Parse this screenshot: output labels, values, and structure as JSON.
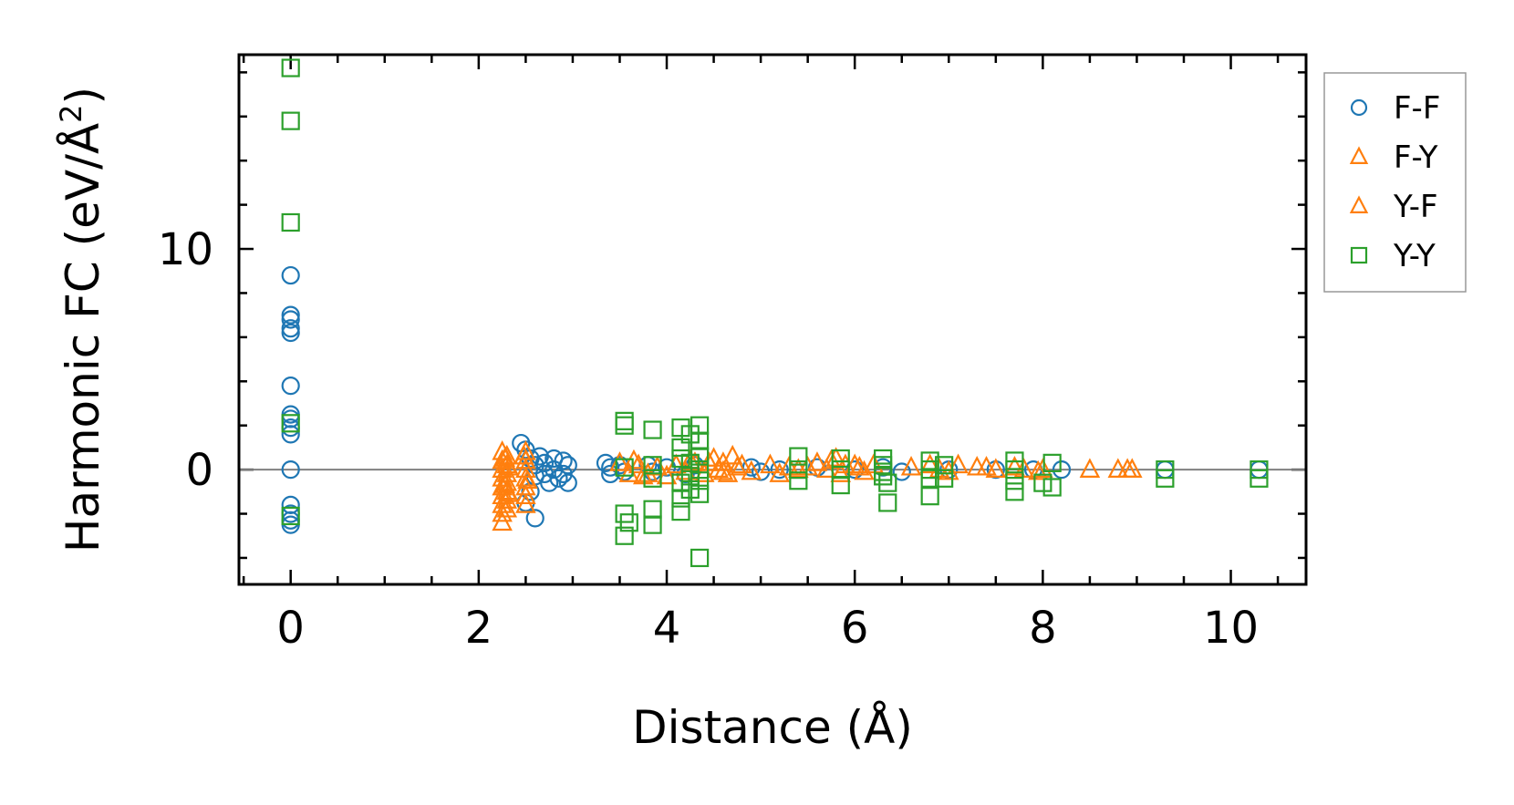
{
  "chart_data": {
    "type": "scatter",
    "xlabel": "Distance (Å)",
    "ylabel_main": "Harmonic FC (eV/Å",
    "ylabel_sup": "2",
    "ylabel_close": ")",
    "xlim": [
      -0.55,
      10.8
    ],
    "ylim": [
      -5.2,
      18.8
    ],
    "xticks": [
      0,
      2,
      4,
      6,
      8,
      10
    ],
    "xtick_labels": [
      "0",
      "2",
      "4",
      "6",
      "8",
      "10"
    ],
    "yticks": [
      0,
      10
    ],
    "ytick_labels": [
      "0",
      "10"
    ],
    "x_minor_step": 0.5,
    "y_minor_step": 2,
    "zero_line": true,
    "legend_position": "outside right, top",
    "series": [
      {
        "name": "F-F",
        "marker": "circle",
        "color": "#1f77b4",
        "points": [
          [
            0,
            8.8
          ],
          [
            0,
            7.0
          ],
          [
            0,
            6.8
          ],
          [
            0,
            6.4
          ],
          [
            0,
            6.2
          ],
          [
            0,
            3.8
          ],
          [
            0,
            2.5
          ],
          [
            0,
            2.3
          ],
          [
            0,
            1.9
          ],
          [
            0,
            1.6
          ],
          [
            0,
            0.0
          ],
          [
            0,
            -1.6
          ],
          [
            0,
            -2.0
          ],
          [
            0,
            -2.3
          ],
          [
            0,
            -2.5
          ],
          [
            2.45,
            1.2
          ],
          [
            2.5,
            0.9
          ],
          [
            2.55,
            0.5
          ],
          [
            2.55,
            -1.0
          ],
          [
            2.5,
            -1.5
          ],
          [
            2.6,
            -2.2
          ],
          [
            2.6,
            0.2
          ],
          [
            2.6,
            -0.3
          ],
          [
            2.65,
            0.6
          ],
          [
            2.7,
            0.3
          ],
          [
            2.7,
            -0.2
          ],
          [
            2.75,
            -0.6
          ],
          [
            2.8,
            0.5
          ],
          [
            2.8,
            0.0
          ],
          [
            2.85,
            -0.4
          ],
          [
            2.9,
            0.4
          ],
          [
            2.9,
            -0.2
          ],
          [
            2.95,
            0.2
          ],
          [
            2.95,
            -0.6
          ],
          [
            3.35,
            0.3
          ],
          [
            3.4,
            -0.2
          ],
          [
            3.4,
            0.1
          ],
          [
            3.5,
            0.2
          ],
          [
            3.55,
            -0.1
          ],
          [
            3.8,
            0.2
          ],
          [
            3.85,
            -0.1
          ],
          [
            4.0,
            0.1
          ],
          [
            4.2,
            -0.2
          ],
          [
            4.3,
            0.2
          ],
          [
            4.9,
            0.1
          ],
          [
            5.0,
            -0.1
          ],
          [
            5.2,
            0.0
          ],
          [
            5.6,
            0.1
          ],
          [
            6.0,
            0.0
          ],
          [
            6.3,
            0.1
          ],
          [
            6.5,
            -0.1
          ],
          [
            7.0,
            0.0
          ],
          [
            7.5,
            0.0
          ],
          [
            7.9,
            0.0
          ],
          [
            8.2,
            0.0
          ],
          [
            9.3,
            0.0
          ],
          [
            10.3,
            0.0
          ]
        ]
      },
      {
        "name": "F-Y",
        "marker": "triangle",
        "color": "#ff7f0e",
        "points": [
          [
            2.25,
            0.8
          ],
          [
            2.25,
            0.4
          ],
          [
            2.25,
            0.0
          ],
          [
            2.25,
            -0.4
          ],
          [
            2.25,
            -0.8
          ],
          [
            2.25,
            -1.2
          ],
          [
            2.25,
            -1.6
          ],
          [
            2.25,
            -2.0
          ],
          [
            2.25,
            -2.4
          ],
          [
            2.3,
            0.6
          ],
          [
            2.3,
            0.2
          ],
          [
            2.3,
            -0.2
          ],
          [
            2.3,
            -0.6
          ],
          [
            2.3,
            -1.0
          ],
          [
            2.3,
            -1.4
          ],
          [
            2.3,
            -1.8
          ],
          [
            2.5,
            0.8
          ],
          [
            2.5,
            0.4
          ],
          [
            2.5,
            0.0
          ],
          [
            2.5,
            -0.4
          ],
          [
            2.5,
            -0.8
          ],
          [
            2.5,
            -1.2
          ],
          [
            2.5,
            -1.6
          ],
          [
            3.5,
            0.3
          ],
          [
            3.6,
            -0.2
          ],
          [
            3.7,
            0.2
          ],
          [
            3.8,
            -0.2
          ],
          [
            3.9,
            0.1
          ],
          [
            4.0,
            -0.3
          ],
          [
            4.1,
            0.2
          ],
          [
            4.2,
            -0.1
          ],
          [
            4.3,
            0.3
          ],
          [
            4.4,
            -0.2
          ],
          [
            4.5,
            0.5
          ],
          [
            4.55,
            0.0
          ],
          [
            4.6,
            0.3
          ],
          [
            4.65,
            -0.2
          ],
          [
            4.7,
            0.6
          ],
          [
            4.75,
            0.1
          ],
          [
            4.8,
            0.2
          ],
          [
            4.9,
            -0.1
          ],
          [
            5.1,
            0.2
          ],
          [
            5.2,
            -0.2
          ],
          [
            5.3,
            0.1
          ],
          [
            5.5,
            0.1
          ],
          [
            5.6,
            0.3
          ],
          [
            5.7,
            0.0
          ],
          [
            5.8,
            0.5
          ],
          [
            5.85,
            -0.2
          ],
          [
            5.9,
            0.2
          ],
          [
            6.0,
            0.2
          ],
          [
            6.1,
            -0.1
          ],
          [
            6.2,
            0.2
          ],
          [
            6.6,
            0.1
          ],
          [
            6.8,
            0.2
          ],
          [
            7.0,
            -0.1
          ],
          [
            7.1,
            0.2
          ],
          [
            7.3,
            0.1
          ],
          [
            7.5,
            0.0
          ],
          [
            7.7,
            0.1
          ],
          [
            7.8,
            0.0
          ],
          [
            8.0,
            0.0
          ],
          [
            8.5,
            0.0
          ],
          [
            8.8,
            0.0
          ],
          [
            8.95,
            0.0
          ]
        ]
      },
      {
        "name": "Y-F",
        "marker": "triangle",
        "color": "#ff7f0e",
        "points": [
          [
            2.28,
            0.5
          ],
          [
            2.28,
            -0.7
          ],
          [
            2.32,
            0.1
          ],
          [
            2.32,
            -1.1
          ],
          [
            2.48,
            0.6
          ],
          [
            2.52,
            -0.5
          ],
          [
            3.65,
            0.4
          ],
          [
            3.75,
            -0.3
          ],
          [
            4.25,
            0.4
          ],
          [
            4.45,
            0.3
          ],
          [
            4.6,
            -0.1
          ],
          [
            5.4,
            0.0
          ],
          [
            5.75,
            0.4
          ],
          [
            6.05,
            0.1
          ],
          [
            6.9,
            0.0
          ],
          [
            7.4,
            0.1
          ],
          [
            7.95,
            -0.1
          ],
          [
            8.9,
            0.0
          ]
        ]
      },
      {
        "name": "Y-Y",
        "marker": "square",
        "color": "#2ca02c",
        "points": [
          [
            0,
            18.2
          ],
          [
            0,
            15.8
          ],
          [
            0,
            11.2
          ],
          [
            0,
            2.1
          ],
          [
            0,
            -2.1
          ],
          [
            3.55,
            2.2
          ],
          [
            3.55,
            2.0
          ],
          [
            3.55,
            0.1
          ],
          [
            3.55,
            -2.0
          ],
          [
            3.55,
            -3.0
          ],
          [
            3.6,
            -2.4
          ],
          [
            3.85,
            1.8
          ],
          [
            3.85,
            0.2
          ],
          [
            3.85,
            -0.4
          ],
          [
            3.85,
            -1.8
          ],
          [
            3.85,
            -2.5
          ],
          [
            4.15,
            1.9
          ],
          [
            4.15,
            1.0
          ],
          [
            4.15,
            0.5
          ],
          [
            4.15,
            -0.6
          ],
          [
            4.15,
            -1.3
          ],
          [
            4.15,
            -1.9
          ],
          [
            4.25,
            1.6
          ],
          [
            4.25,
            0.3
          ],
          [
            4.25,
            -0.3
          ],
          [
            4.25,
            -0.9
          ],
          [
            4.35,
            2.0
          ],
          [
            4.35,
            1.3
          ],
          [
            4.35,
            0.6
          ],
          [
            4.35,
            0.0
          ],
          [
            4.35,
            -0.5
          ],
          [
            4.35,
            -1.1
          ],
          [
            4.35,
            -4.0
          ],
          [
            5.4,
            0.6
          ],
          [
            5.4,
            0.0
          ],
          [
            5.4,
            -0.5
          ],
          [
            5.85,
            0.5
          ],
          [
            5.85,
            0.0
          ],
          [
            5.85,
            -0.7
          ],
          [
            6.3,
            0.5
          ],
          [
            6.3,
            0.2
          ],
          [
            6.3,
            -0.1
          ],
          [
            6.3,
            -0.3
          ],
          [
            6.35,
            -0.6
          ],
          [
            6.35,
            -1.5
          ],
          [
            6.8,
            0.4
          ],
          [
            6.8,
            0.0
          ],
          [
            6.8,
            -0.4
          ],
          [
            6.8,
            -1.2
          ],
          [
            6.95,
            0.2
          ],
          [
            6.95,
            -0.4
          ],
          [
            7.7,
            0.4
          ],
          [
            7.7,
            0.0
          ],
          [
            7.7,
            -0.5
          ],
          [
            7.7,
            -1.0
          ],
          [
            8.0,
            -0.6
          ],
          [
            8.1,
            0.3
          ],
          [
            8.1,
            -0.8
          ],
          [
            9.3,
            0.0
          ],
          [
            9.3,
            -0.4
          ],
          [
            10.3,
            0.0
          ],
          [
            10.3,
            -0.4
          ]
        ]
      }
    ]
  }
}
